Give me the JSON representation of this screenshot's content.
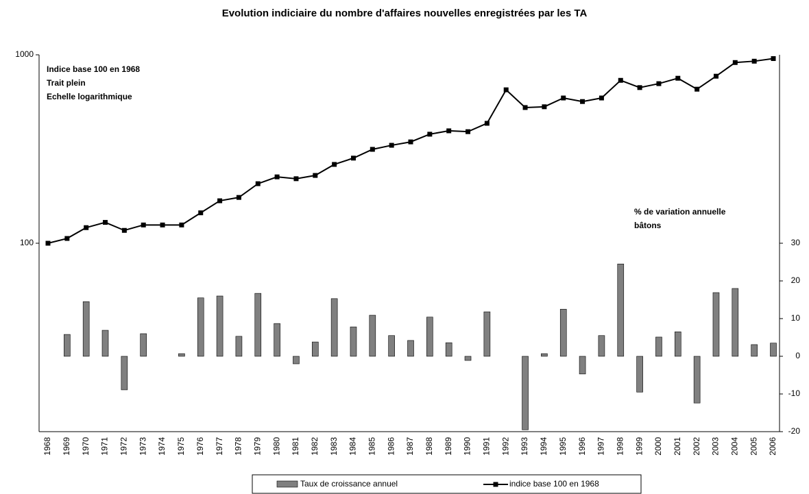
{
  "chart_data": {
    "type": "bar-line",
    "title": "Evolution indiciaire du nombre d'affaires nouvelles enregistrées par les TA",
    "annotations": [
      "Indice base 100 en 1968",
      "Trait plein",
      "Echelle logarithmique",
      "% de variation annuelle",
      "bâtons"
    ],
    "categories": [
      "1968",
      "1969",
      "1970",
      "1971",
      "1972",
      "1973",
      "1974",
      "1975",
      "1976",
      "1977",
      "1978",
      "1979",
      "1980",
      "1981",
      "1982",
      "1983",
      "1984",
      "1985",
      "1986",
      "1987",
      "1988",
      "1989",
      "1990",
      "1991",
      "1992",
      "1993",
      "1994",
      "1995",
      "1996",
      "1997",
      "1998",
      "1999",
      "2000",
      "2001",
      "2002",
      "2003",
      "2004",
      "2005",
      "2006"
    ],
    "series": [
      {
        "name": "Taux de croissance annuel",
        "color": "#808080",
        "axis": "y2",
        "type": "bar",
        "values": [
          null,
          5.8,
          14.5,
          6.9,
          -8.9,
          6,
          0,
          0.7,
          15.5,
          16,
          5.3,
          16.7,
          8.7,
          -2,
          3.8,
          15.3,
          7.8,
          10.9,
          5.5,
          4.2,
          10.4,
          3.6,
          -1.1,
          11.8,
          null,
          -19.5,
          0.7,
          12.5,
          -4.7,
          5.5,
          24.5,
          -9.5,
          5.1,
          6.5,
          -12.4,
          16.9,
          18,
          3.1,
          3.5
        ]
      },
      {
        "name": "indice base 100 en 1968",
        "color": "#000000",
        "axis": "y",
        "type": "line",
        "values": [
          100,
          106,
          121,
          129,
          117,
          125,
          125,
          125,
          145,
          168,
          175,
          207,
          225,
          220,
          229,
          262,
          283,
          315,
          331,
          345,
          379,
          395,
          391,
          433,
          652,
          525,
          530,
          590,
          565,
          590,
          732,
          670,
          703,
          751,
          657,
          770,
          910,
          925,
          955
        ]
      }
    ],
    "ylim": [
      10,
      1000
    ],
    "yticks": [
      100,
      1000
    ],
    "log_y": true,
    "y2lim": [
      -20,
      80
    ],
    "y2ticks": [
      -20,
      -10,
      0,
      10,
      20,
      30
    ],
    "legend": "bottom"
  }
}
